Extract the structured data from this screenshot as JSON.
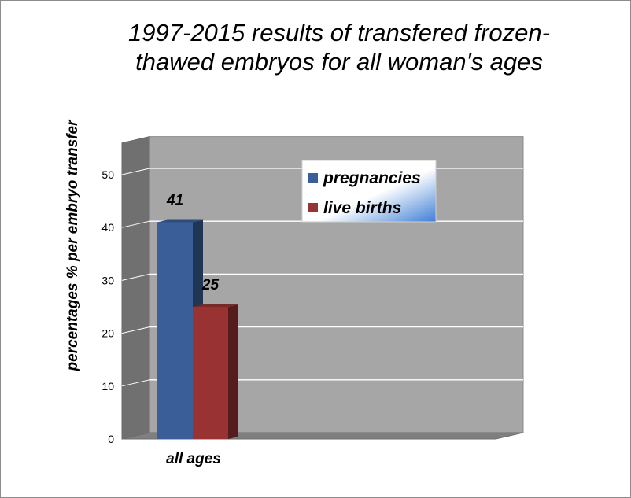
{
  "chart_data": {
    "type": "bar",
    "title": "1997-2015 results of  transfered frozen-thawed embryos for all woman's ages",
    "title_lines": [
      "1997-2015 results of  transfered frozen-",
      "thawed embryos for all woman's ages"
    ],
    "ylabel": "percentages % per embryo transfer",
    "xlabel": "",
    "categories": [
      "all ages"
    ],
    "series": [
      {
        "name": "pregnancies",
        "values": [
          41
        ],
        "color": "#3a5f98",
        "data_label": "41"
      },
      {
        "name": "live births",
        "values": [
          25
        ],
        "color": "#993333",
        "data_label": "25"
      }
    ],
    "ylim": [
      0,
      55
    ],
    "yticks": [
      "0",
      "10",
      "20",
      "30",
      "40",
      "50"
    ],
    "ytick_values": [
      0,
      10,
      20,
      30,
      40,
      50
    ],
    "grid": true,
    "legend_position": "top-center",
    "style": "3d",
    "wall_color": "#a6a6a6",
    "floor_color": "#7f7f7f"
  }
}
